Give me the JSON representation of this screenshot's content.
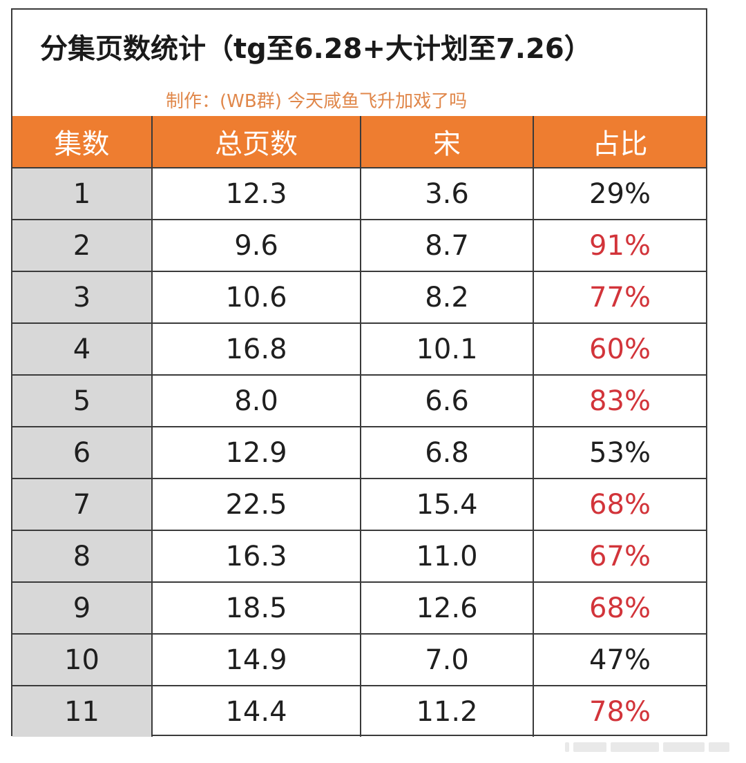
{
  "title": "分集页数统计（tg至6.28+大计划至7.26）",
  "subtitle": "制作：(WB群) 今天咸鱼飞升加戏了吗",
  "colors": {
    "header_bg": "#ee7d30",
    "header_text": "#ffffff",
    "first_col_bg": "#d8d8d8",
    "highlight": "#d2343a",
    "subtitle": "#e0874a"
  },
  "chart_data": {
    "type": "table",
    "title": "分集页数统计（tg至6.28+大计划至7.26）",
    "subtitle": "制作：(WB群) 今天咸鱼飞升加戏了吗",
    "columns": [
      "集数",
      "总页数",
      "宋",
      "占比"
    ],
    "rows": [
      {
        "ep": "1",
        "total": "12.3",
        "song": "3.6",
        "ratio": "29%",
        "highlight": false
      },
      {
        "ep": "2",
        "total": "9.6",
        "song": "8.7",
        "ratio": "91%",
        "highlight": true
      },
      {
        "ep": "3",
        "total": "10.6",
        "song": "8.2",
        "ratio": "77%",
        "highlight": true
      },
      {
        "ep": "4",
        "total": "16.8",
        "song": "10.1",
        "ratio": "60%",
        "highlight": true
      },
      {
        "ep": "5",
        "total": "8.0",
        "song": "6.6",
        "ratio": "83%",
        "highlight": true
      },
      {
        "ep": "6",
        "total": "12.9",
        "song": "6.8",
        "ratio": "53%",
        "highlight": false
      },
      {
        "ep": "7",
        "total": "22.5",
        "song": "15.4",
        "ratio": "68%",
        "highlight": true
      },
      {
        "ep": "8",
        "total": "16.3",
        "song": "11.0",
        "ratio": "67%",
        "highlight": true
      },
      {
        "ep": "9",
        "total": "18.5",
        "song": "12.6",
        "ratio": "68%",
        "highlight": true
      },
      {
        "ep": "10",
        "total": "14.9",
        "song": "7.0",
        "ratio": "47%",
        "highlight": false
      },
      {
        "ep": "11",
        "total": "14.4",
        "song": "11.2",
        "ratio": "78%",
        "highlight": true
      }
    ]
  }
}
